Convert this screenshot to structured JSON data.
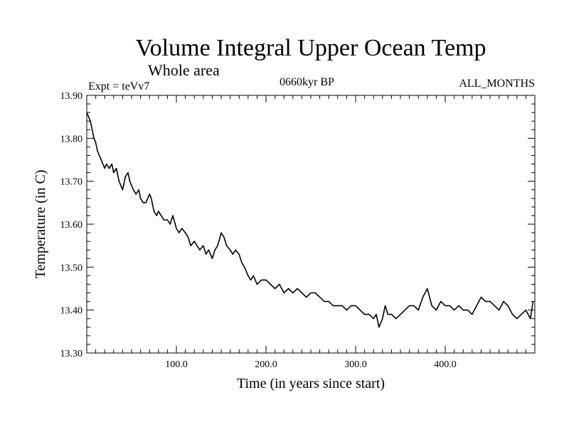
{
  "header": {
    "title": "Volume Integral Upper Ocean Temp",
    "subtitle": "Whole area",
    "expt": "Expt = teVv7",
    "period": "0660kyr BP",
    "months": "ALL_MONTHS"
  },
  "chart_data": {
    "type": "line",
    "title": "Volume Integral Upper Ocean Temp",
    "subtitle": "Whole area",
    "xlabel": "Time (in years since start)",
    "ylabel": "Temperature (in C)",
    "xlim": [
      0,
      500
    ],
    "ylim": [
      13.3,
      13.9
    ],
    "x_ticks": [
      100,
      200,
      300,
      400
    ],
    "x_tick_labels": [
      "100.0",
      "200.0",
      "300.0",
      "400.0"
    ],
    "y_ticks": [
      13.3,
      13.4,
      13.5,
      13.6,
      13.7,
      13.8,
      13.9
    ],
    "y_tick_labels": [
      "13.30",
      "13.40",
      "13.50",
      "13.60",
      "13.70",
      "13.80",
      "13.90"
    ],
    "grid": false,
    "line_color": "#000000",
    "series": [
      {
        "x": [
          0,
          2,
          4,
          6,
          8,
          10,
          12,
          14,
          16,
          18,
          20,
          22,
          25,
          28,
          30,
          33,
          36,
          40,
          43,
          46,
          48,
          50,
          52,
          55,
          58,
          60,
          63,
          66,
          70,
          72,
          75,
          78,
          80,
          83,
          86,
          90,
          93,
          96,
          100,
          103,
          106,
          110,
          113,
          116,
          120,
          123,
          126,
          130,
          133,
          136,
          140,
          143,
          146,
          150,
          153,
          156,
          160,
          163,
          166,
          170,
          173,
          176,
          180,
          183,
          186,
          190,
          195,
          200,
          205,
          210,
          215,
          220,
          225,
          230,
          235,
          240,
          245,
          250,
          255,
          260,
          265,
          270,
          275,
          280,
          285,
          290,
          295,
          300,
          305,
          310,
          315,
          320,
          323,
          326,
          330,
          333,
          336,
          340,
          345,
          350,
          355,
          360,
          365,
          370,
          375,
          380,
          385,
          390,
          395,
          400,
          405,
          410,
          415,
          420,
          425,
          430,
          435,
          440,
          445,
          450,
          455,
          460,
          465,
          470,
          475,
          480,
          485,
          490,
          495,
          498
        ],
        "y": [
          13.86,
          13.85,
          13.84,
          13.82,
          13.8,
          13.79,
          13.77,
          13.76,
          13.75,
          13.74,
          13.73,
          13.74,
          13.73,
          13.74,
          13.72,
          13.73,
          13.7,
          13.68,
          13.71,
          13.72,
          13.7,
          13.69,
          13.68,
          13.67,
          13.68,
          13.66,
          13.65,
          13.65,
          13.67,
          13.66,
          13.63,
          13.62,
          13.63,
          13.62,
          13.61,
          13.61,
          13.6,
          13.62,
          13.59,
          13.58,
          13.59,
          13.58,
          13.57,
          13.55,
          13.56,
          13.55,
          13.54,
          13.55,
          13.53,
          13.54,
          13.52,
          13.54,
          13.55,
          13.58,
          13.57,
          13.55,
          13.54,
          13.53,
          13.54,
          13.53,
          13.51,
          13.5,
          13.48,
          13.47,
          13.48,
          13.46,
          13.47,
          13.47,
          13.46,
          13.45,
          13.46,
          13.44,
          13.45,
          13.44,
          13.45,
          13.44,
          13.43,
          13.44,
          13.44,
          13.43,
          13.42,
          13.42,
          13.41,
          13.41,
          13.41,
          13.4,
          13.41,
          13.41,
          13.4,
          13.39,
          13.39,
          13.38,
          13.39,
          13.36,
          13.38,
          13.41,
          13.39,
          13.39,
          13.38,
          13.39,
          13.4,
          13.41,
          13.41,
          13.4,
          13.43,
          13.45,
          13.41,
          13.4,
          13.42,
          13.41,
          13.41,
          13.4,
          13.41,
          13.4,
          13.4,
          13.39,
          13.41,
          13.43,
          13.42,
          13.42,
          13.41,
          13.4,
          13.42,
          13.41,
          13.39,
          13.38,
          13.39,
          13.4,
          13.38,
          13.42
        ]
      }
    ]
  }
}
